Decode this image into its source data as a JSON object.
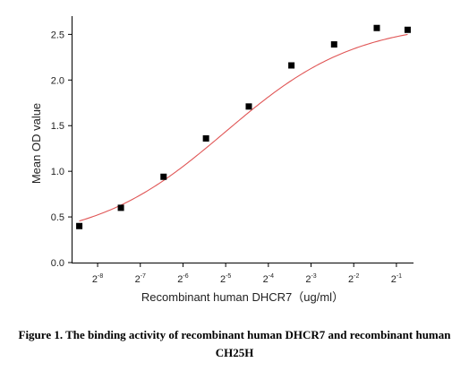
{
  "chart_data": {
    "type": "scatter",
    "xlabel": "Recombinant human DHCR7（ug/ml）",
    "ylabel": "Mean OD value",
    "x_scale": "log2",
    "xlim": [
      0.00256,
      0.66
    ],
    "ylim": [
      0,
      2.7
    ],
    "x_ticks": [
      {
        "value": 0.00390625,
        "base": "2",
        "exp": "-8"
      },
      {
        "value": 0.0078125,
        "base": "2",
        "exp": "-7"
      },
      {
        "value": 0.015625,
        "base": "2",
        "exp": "-6"
      },
      {
        "value": 0.03125,
        "base": "2",
        "exp": "-5"
      },
      {
        "value": 0.0625,
        "base": "2",
        "exp": "-4"
      },
      {
        "value": 0.125,
        "base": "2",
        "exp": "-3"
      },
      {
        "value": 0.25,
        "base": "2",
        "exp": "-2"
      },
      {
        "value": 0.5,
        "base": "2",
        "exp": "-1"
      }
    ],
    "y_ticks": [
      "0.0",
      "0.5",
      "1.0",
      "1.5",
      "2.0",
      "2.5"
    ],
    "grid": false,
    "series": [
      {
        "marker": "square",
        "color": "#000000",
        "x": [
          0.0029,
          0.0057,
          0.0114,
          0.0227,
          0.0455,
          0.0909,
          0.1818,
          0.3636,
          0.6
        ],
        "y": [
          0.4,
          0.6,
          0.94,
          1.36,
          1.71,
          2.16,
          2.39,
          2.57,
          2.55
        ]
      }
    ],
    "fit_curve": {
      "type": "4PL",
      "color": "#e05555",
      "bottom": 0.22,
      "top": 2.64,
      "ec50": 0.031,
      "hill": 0.94
    }
  },
  "caption": {
    "line1": "Figure 1. The binding activity of recombinant human DHCR7 and recombinant human",
    "line2": "CH25H"
  }
}
